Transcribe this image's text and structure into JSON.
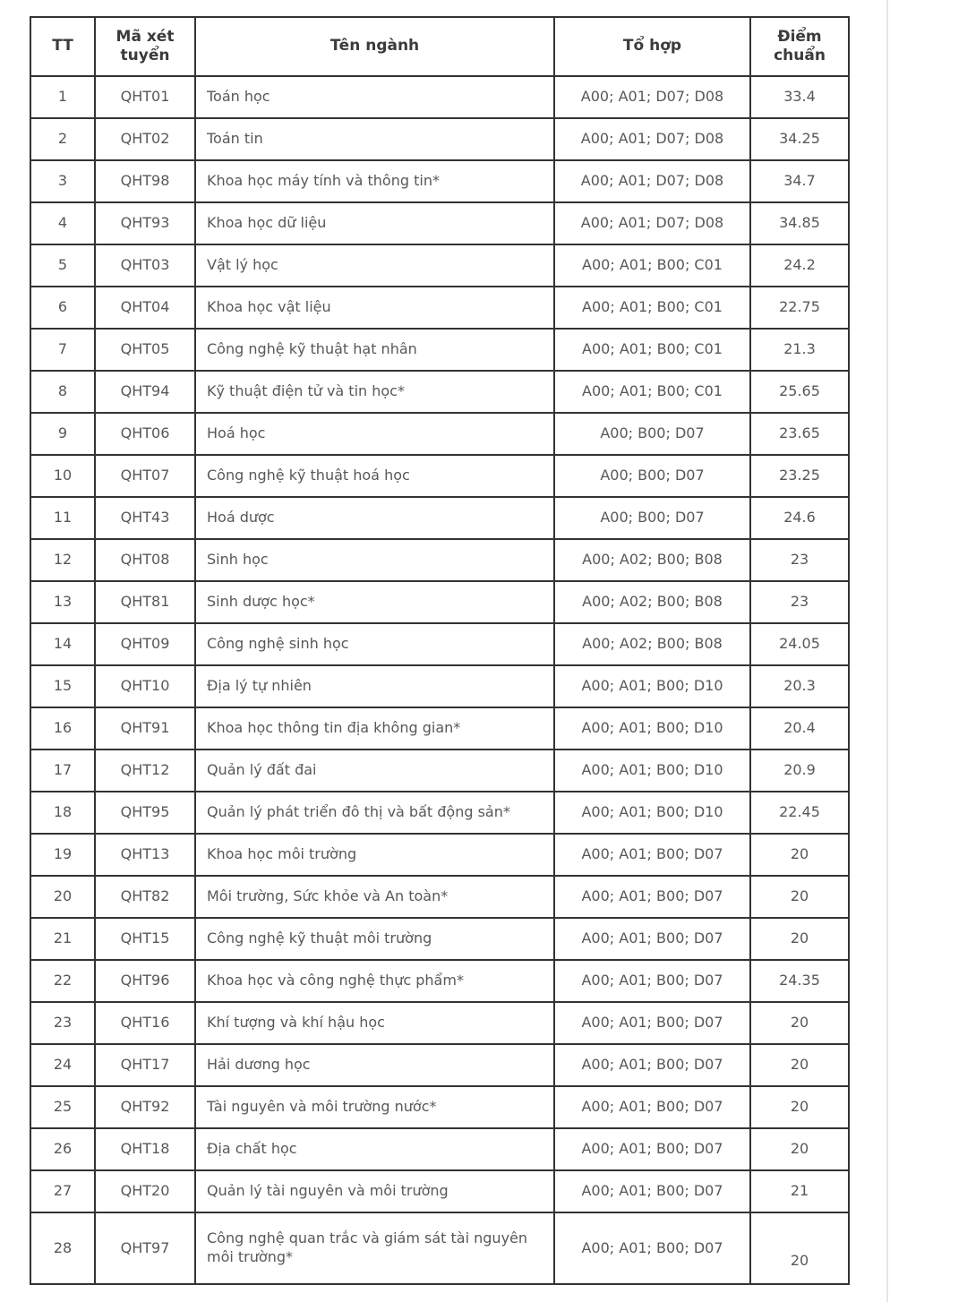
{
  "page": {
    "background_color": "#ffffff",
    "divider_color": "#e6e6e6"
  },
  "table": {
    "border_color": "#333333",
    "header_text_color": "#3b3b3b",
    "body_text_color": "#585858",
    "columns": [
      "TT",
      "Mã xét tuyển",
      "Tên ngành",
      "Tổ hợp",
      "Điểm chuẩn"
    ],
    "rows": [
      {
        "tt": "1",
        "code": "QHT01",
        "name": "Toán học",
        "combo": "A00; A01; D07; D08",
        "score": "33.4"
      },
      {
        "tt": "2",
        "code": "QHT02",
        "name": "Toán tin",
        "combo": "A00; A01; D07; D08",
        "score": "34.25"
      },
      {
        "tt": "3",
        "code": "QHT98",
        "name": "Khoa học máy tính và thông tin*",
        "combo": "A00; A01; D07; D08",
        "score": "34.7"
      },
      {
        "tt": "4",
        "code": "QHT93",
        "name": "Khoa học dữ liệu",
        "combo": "A00; A01; D07; D08",
        "score": "34.85"
      },
      {
        "tt": "5",
        "code": "QHT03",
        "name": "Vật lý học",
        "combo": "A00; A01; B00; C01",
        "score": "24.2"
      },
      {
        "tt": "6",
        "code": "QHT04",
        "name": "Khoa học vật liệu",
        "combo": "A00; A01; B00; C01",
        "score": "22.75"
      },
      {
        "tt": "7",
        "code": "QHT05",
        "name": "Công nghệ kỹ thuật hạt nhân",
        "combo": "A00; A01; B00; C01",
        "score": "21.3"
      },
      {
        "tt": "8",
        "code": "QHT94",
        "name": "Kỹ thuật điện tử và tin học*",
        "combo": "A00; A01; B00; C01",
        "score": "25.65"
      },
      {
        "tt": "9",
        "code": "QHT06",
        "name": "Hoá học",
        "combo": "A00; B00; D07",
        "score": "23.65"
      },
      {
        "tt": "10",
        "code": "QHT07",
        "name": "Công nghệ kỹ thuật hoá học",
        "combo": "A00; B00; D07",
        "score": "23.25"
      },
      {
        "tt": "11",
        "code": "QHT43",
        "name": "Hoá dược",
        "combo": "A00; B00; D07",
        "score": "24.6"
      },
      {
        "tt": "12",
        "code": "QHT08",
        "name": "Sinh học",
        "combo": "A00; A02; B00; B08",
        "score": "23"
      },
      {
        "tt": "13",
        "code": "QHT81",
        "name": "Sinh dược học*",
        "combo": "A00; A02; B00; B08",
        "score": "23"
      },
      {
        "tt": "14",
        "code": "QHT09",
        "name": "Công nghệ sinh học",
        "combo": "A00; A02; B00; B08",
        "score": "24.05"
      },
      {
        "tt": "15",
        "code": "QHT10",
        "name": "Địa lý tự nhiên",
        "combo": "A00; A01; B00; D10",
        "score": "20.3"
      },
      {
        "tt": "16",
        "code": "QHT91",
        "name": "Khoa học thông tin địa không gian*",
        "combo": "A00; A01; B00; D10",
        "score": "20.4"
      },
      {
        "tt": "17",
        "code": "QHT12",
        "name": "Quản lý đất đai",
        "combo": "A00; A01; B00; D10",
        "score": "20.9"
      },
      {
        "tt": "18",
        "code": "QHT95",
        "name": "Quản lý phát triển đô thị và bất động sản*",
        "combo": "A00; A01; B00; D10",
        "score": "22.45"
      },
      {
        "tt": "19",
        "code": "QHT13",
        "name": "Khoa học môi trường",
        "combo": "A00; A01; B00; D07",
        "score": "20"
      },
      {
        "tt": "20",
        "code": "QHT82",
        "name": "Môi trường, Sức khỏe và An toàn*",
        "combo": "A00; A01; B00; D07",
        "score": "20"
      },
      {
        "tt": "21",
        "code": "QHT15",
        "name": "Công nghệ kỹ thuật môi trường",
        "combo": "A00; A01; B00; D07",
        "score": "20"
      },
      {
        "tt": "22",
        "code": "QHT96",
        "name": "Khoa học và công nghệ thực phẩm*",
        "combo": "A00; A01; B00; D07",
        "score": "24.35"
      },
      {
        "tt": "23",
        "code": "QHT16",
        "name": "Khí tượng và khí hậu học",
        "combo": "A00; A01; B00; D07",
        "score": "20"
      },
      {
        "tt": "24",
        "code": "QHT17",
        "name": "Hải dương học",
        "combo": "A00; A01; B00; D07",
        "score": "20"
      },
      {
        "tt": "25",
        "code": "QHT92",
        "name": "Tài nguyên và môi trường nước*",
        "combo": "A00; A01; B00; D07",
        "score": "20"
      },
      {
        "tt": "26",
        "code": "QHT18",
        "name": "Địa chất học",
        "combo": "A00; A01; B00; D07",
        "score": "20"
      },
      {
        "tt": "27",
        "code": "QHT20",
        "name": "Quản lý tài nguyên và môi trường",
        "combo": "A00; A01; B00; D07",
        "score": "21"
      },
      {
        "tt": "28",
        "code": "QHT97",
        "name": "Công nghệ quan trắc và giám sát tài nguyên môi trường*",
        "combo": "A00; A01; B00; D07",
        "score": "20"
      }
    ]
  }
}
